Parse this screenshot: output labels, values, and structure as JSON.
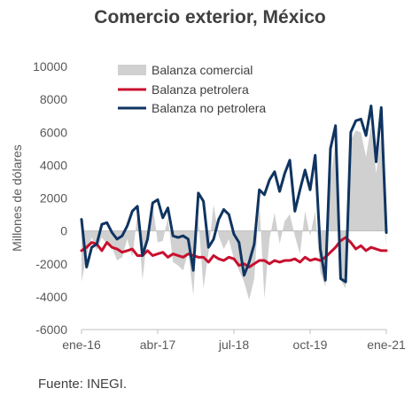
{
  "chart_data": {
    "type": "line",
    "title": "Comercio exterior, México",
    "ylabel": "Millones de dólares",
    "xlabel": "",
    "ylim": [
      -6000,
      10000
    ],
    "yticks": [
      -6000,
      -4000,
      -2000,
      0,
      2000,
      4000,
      6000,
      8000,
      10000
    ],
    "x_ticks": [
      "ene-16",
      "abr-17",
      "jul-18",
      "oct-19",
      "ene-21"
    ],
    "x_range": [
      "2016-01",
      "2021-01"
    ],
    "grid": false,
    "legend_position": "top-left",
    "x": [
      "2016-01",
      "2016-02",
      "2016-03",
      "2016-04",
      "2016-05",
      "2016-06",
      "2016-07",
      "2016-08",
      "2016-09",
      "2016-10",
      "2016-11",
      "2016-12",
      "2017-01",
      "2017-02",
      "2017-03",
      "2017-04",
      "2017-05",
      "2017-06",
      "2017-07",
      "2017-08",
      "2017-09",
      "2017-10",
      "2017-11",
      "2017-12",
      "2018-01",
      "2018-02",
      "2018-03",
      "2018-04",
      "2018-05",
      "2018-06",
      "2018-07",
      "2018-08",
      "2018-09",
      "2018-10",
      "2018-11",
      "2018-12",
      "2019-01",
      "2019-02",
      "2019-03",
      "2019-04",
      "2019-05",
      "2019-06",
      "2019-07",
      "2019-08",
      "2019-09",
      "2019-10",
      "2019-11",
      "2019-12",
      "2020-01",
      "2020-02",
      "2020-03",
      "2020-04",
      "2020-05",
      "2020-06",
      "2020-07",
      "2020-08",
      "2020-09",
      "2020-10",
      "2020-11",
      "2020-12",
      "2021-01"
    ],
    "series": [
      {
        "name": "Balanza comercial",
        "type": "area",
        "color": "#d0d0d0",
        "values": [
          -3100,
          -1500,
          -400,
          -1200,
          -400,
          -800,
          -1000,
          -1800,
          -1600,
          -500,
          -1600,
          1000,
          -3000,
          -200,
          1600,
          -700,
          -600,
          800,
          -1900,
          -2100,
          -2400,
          -1300,
          -3900,
          800,
          -3500,
          -1300,
          1600,
          -300,
          -1100,
          -500,
          -1700,
          -2400,
          -3100,
          -4200,
          -2900,
          1800,
          -4100,
          -500,
          1100,
          -800,
          600,
          1000,
          -300,
          -1400,
          1200,
          -300,
          1200,
          -2500,
          -3400,
          3100,
          5400,
          -3000,
          -3500,
          5500,
          6100,
          6000,
          4500,
          6400,
          3500,
          5800,
          -1000
        ]
      },
      {
        "name": "Balanza petrolera",
        "type": "line",
        "color": "#c8102e",
        "values": [
          -1200,
          -1000,
          -700,
          -800,
          -1200,
          -700,
          -1000,
          -1100,
          -1300,
          -1200,
          -1100,
          -1500,
          -1500,
          -1200,
          -1500,
          -1400,
          -1300,
          -1600,
          -1400,
          -1500,
          -1600,
          -1400,
          -1500,
          -1600,
          -1600,
          -1900,
          -1500,
          -1700,
          -1800,
          -1600,
          -1700,
          -2100,
          -2000,
          -2200,
          -2000,
          -1800,
          -1800,
          -2000,
          -1800,
          -1900,
          -1800,
          -1800,
          -1700,
          -1900,
          -1600,
          -1800,
          -1700,
          -1800,
          -1600,
          -1300,
          -1000,
          -600,
          -400,
          -700,
          -1100,
          -900,
          -1200,
          -1000,
          -1100,
          -1200,
          -1200
        ]
      },
      {
        "name": "Balanza no petrolera",
        "type": "line",
        "color": "#0f3460",
        "values": [
          700,
          -2200,
          -1000,
          -800,
          400,
          500,
          -100,
          -500,
          -300,
          300,
          1200,
          1500,
          -1500,
          -500,
          1700,
          1900,
          800,
          1400,
          -300,
          -400,
          -300,
          -500,
          -2400,
          2300,
          1800,
          -1000,
          -500,
          700,
          1300,
          1000,
          -200,
          -700,
          -2700,
          -1900,
          -800,
          2500,
          2200,
          3100,
          3600,
          2400,
          3500,
          4300,
          1200,
          2500,
          3700,
          2500,
          4600,
          -1100,
          -3000,
          5000,
          6400,
          -2900,
          -3100,
          6000,
          6700,
          6800,
          5800,
          7600,
          4200,
          7500,
          -100
        ]
      }
    ]
  },
  "footer": {
    "source": "Fuente: INEGI."
  }
}
